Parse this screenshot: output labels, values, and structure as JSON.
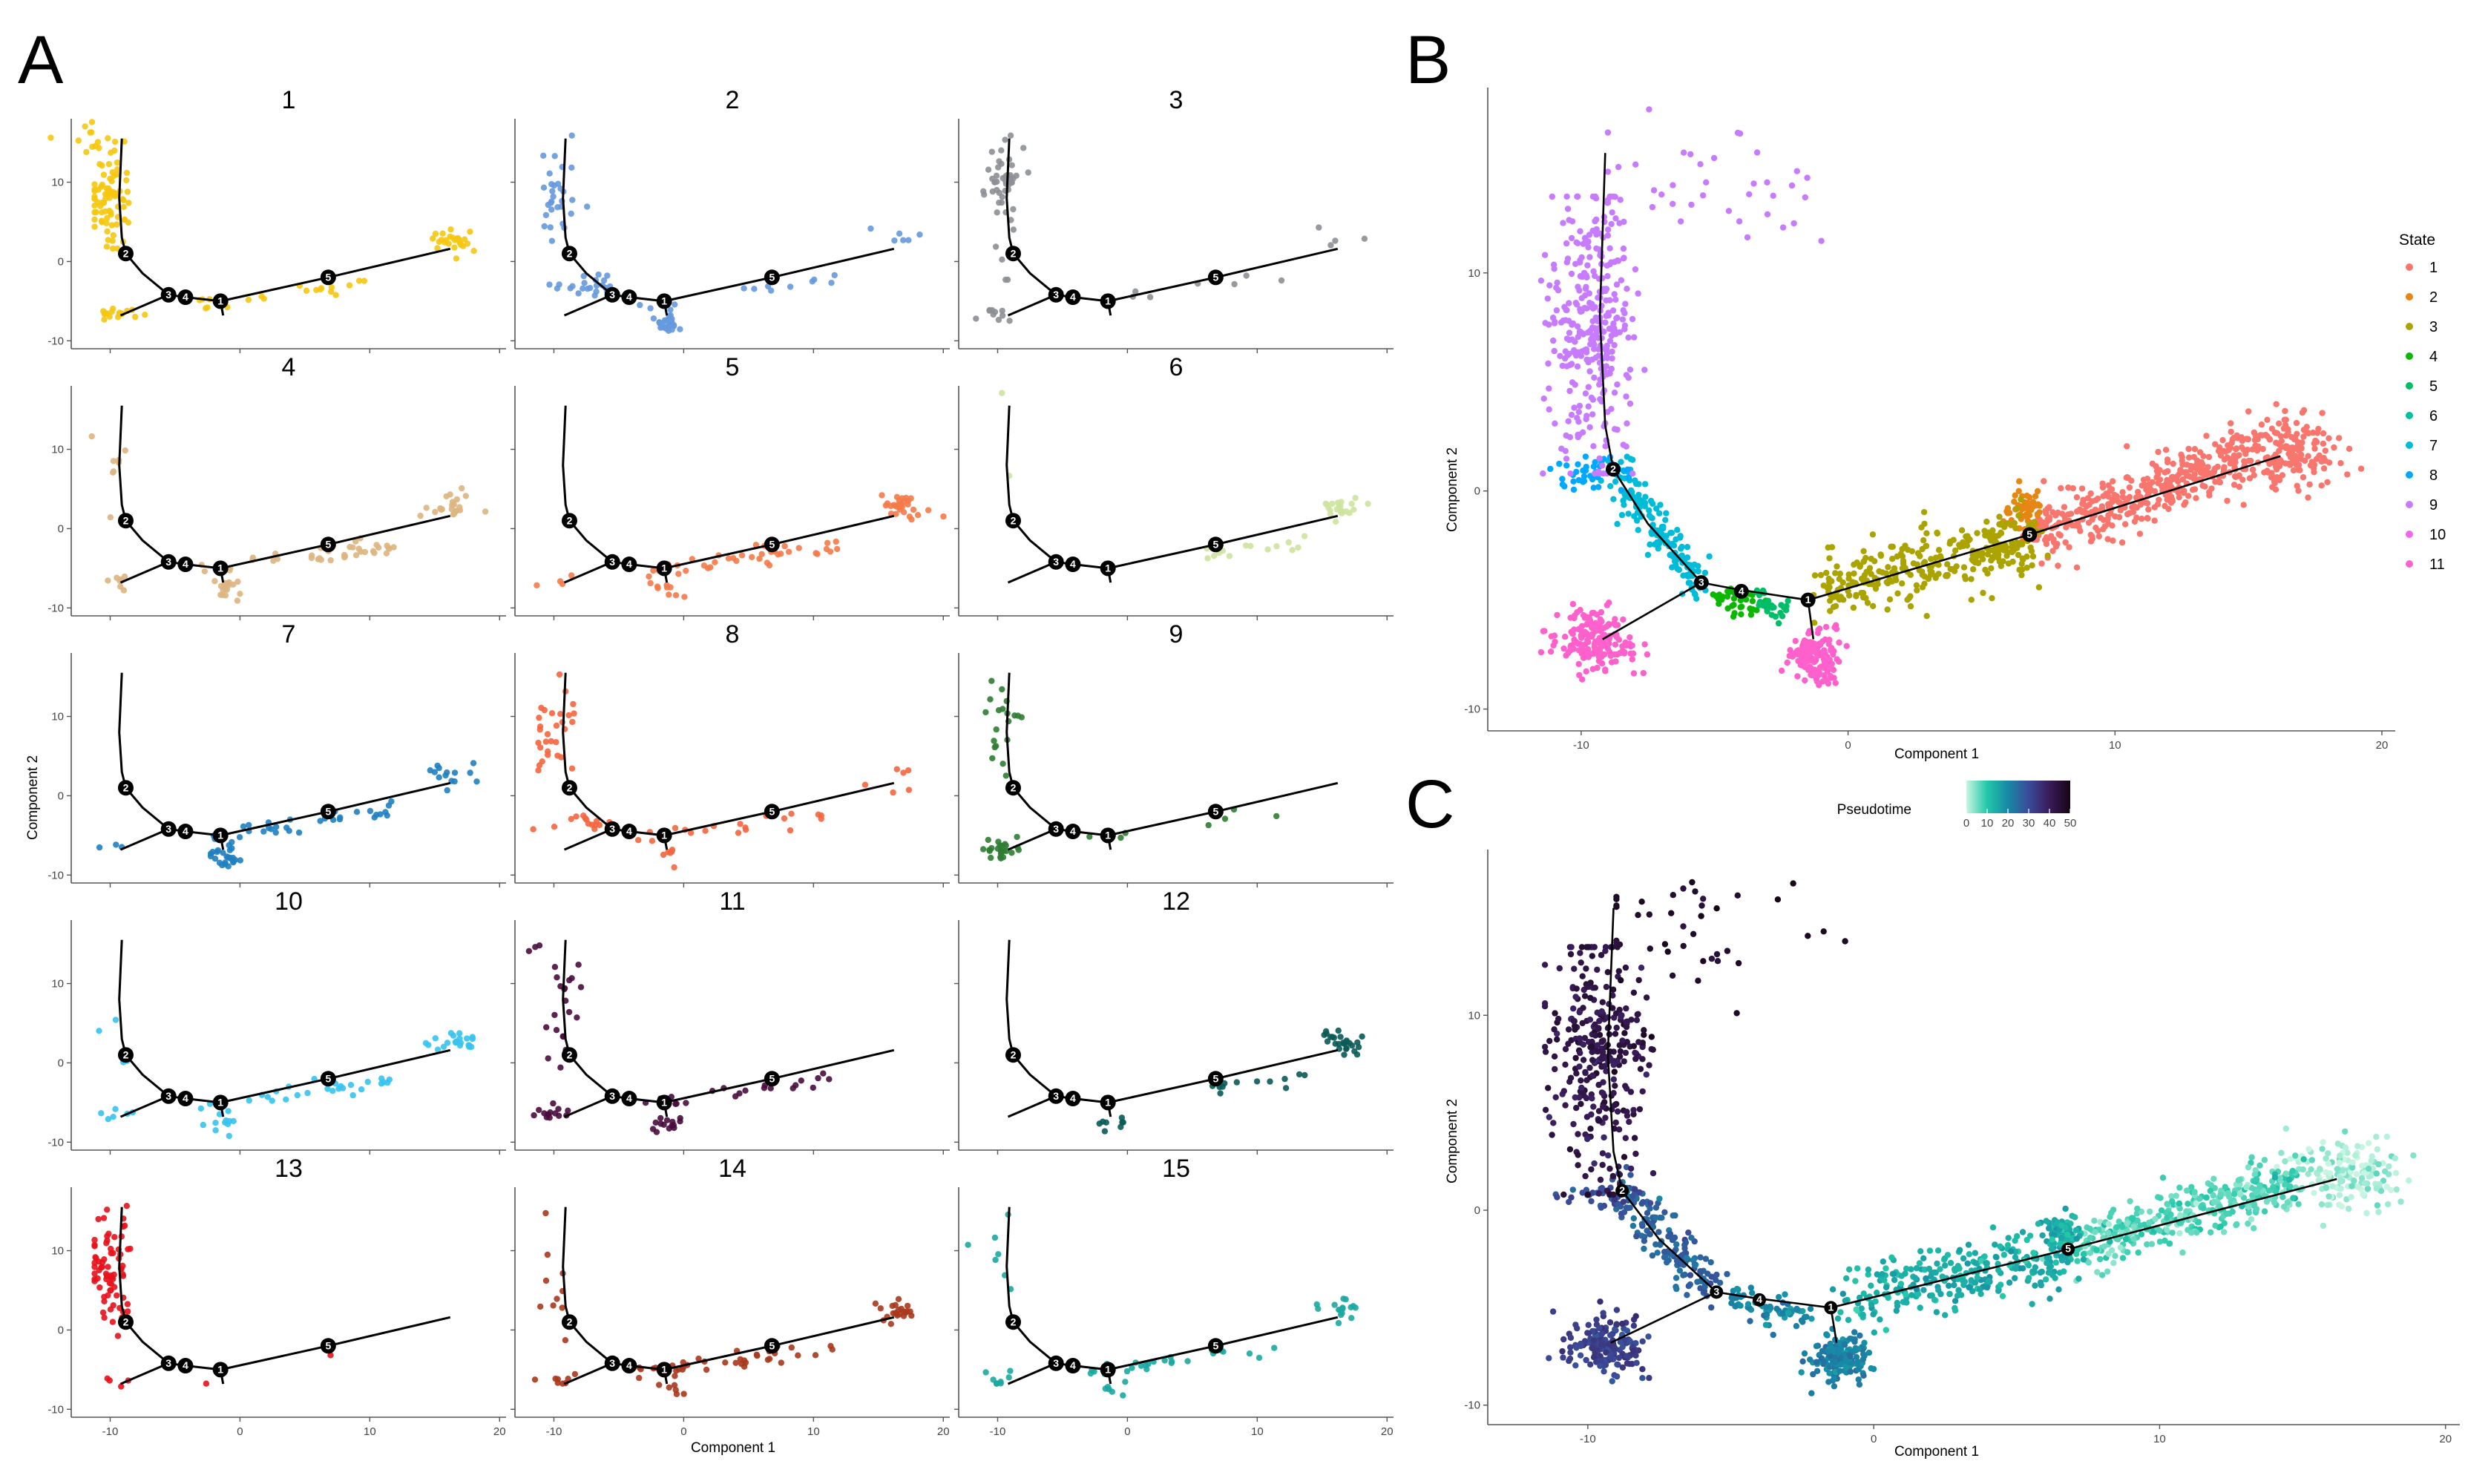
{
  "panel_letters": [
    "A",
    "B",
    "C"
  ],
  "chart_data": [
    {
      "panel": "A",
      "type": "scatter",
      "xlabel": "Component 1",
      "ylabel": "Component 2",
      "xlim": [
        -13,
        20.5
      ],
      "ylim": [
        -11,
        18
      ],
      "xticks": [
        -10,
        0,
        10,
        20
      ],
      "yticks": [
        -10,
        0,
        10
      ],
      "facets": [
        {
          "title": "1",
          "color": "#F5C710",
          "regions": [
            [
              "arcTop",
              80
            ],
            [
              "leftLow",
              18
            ],
            [
              "rightEnd",
              26
            ],
            [
              "alongMid",
              20
            ],
            [
              "tailUp",
              10
            ]
          ]
        },
        {
          "title": "2",
          "color": "#6699DD",
          "regions": [
            [
              "arcTop",
              30
            ],
            [
              "branch3",
              22
            ],
            [
              "node1Blob",
              28
            ],
            [
              "alongMid",
              12
            ],
            [
              "rightEnd",
              6
            ]
          ]
        },
        {
          "title": "3",
          "color": "#8C9096",
          "regions": [
            [
              "arcUpper",
              40
            ],
            [
              "arcMid",
              8
            ],
            [
              "leftLow",
              10
            ],
            [
              "alongMid",
              8
            ],
            [
              "rightEnd",
              4
            ]
          ]
        },
        {
          "title": "4",
          "color": "#DDB57F",
          "regions": [
            [
              "arcSparse",
              8
            ],
            [
              "leftLow",
              8
            ],
            [
              "node1Blob",
              18
            ],
            [
              "alongMid",
              40
            ],
            [
              "rightEnd",
              22
            ]
          ]
        },
        {
          "title": "5",
          "color": "#F47A48",
          "regions": [
            [
              "alongMid",
              40
            ],
            [
              "rightEnd",
              30
            ],
            [
              "node1Blob",
              8
            ],
            [
              "leftLow",
              4
            ]
          ]
        },
        {
          "title": "6",
          "color": "#CDE39F",
          "regions": [
            [
              "alongFar",
              14
            ],
            [
              "rightEnd",
              22
            ],
            [
              "arcSparse",
              2
            ]
          ]
        },
        {
          "title": "7",
          "color": "#1F7FC0",
          "regions": [
            [
              "node1Blob",
              24
            ],
            [
              "alongMid",
              36
            ],
            [
              "rightEnd",
              14
            ],
            [
              "leftLow",
              3
            ]
          ]
        },
        {
          "title": "8",
          "color": "#F4663F",
          "regions": [
            [
              "arcTop",
              30
            ],
            [
              "branch3",
              14
            ],
            [
              "alongMid",
              22
            ],
            [
              "node1Blob",
              6
            ],
            [
              "rightEnd",
              6
            ]
          ]
        },
        {
          "title": "9",
          "color": "#2E7D32",
          "regions": [
            [
              "arcUpper",
              14
            ],
            [
              "leftLowBlob",
              24
            ],
            [
              "alongMid",
              8
            ],
            [
              "arcMid",
              6
            ]
          ]
        },
        {
          "title": "10",
          "color": "#36C3EE",
          "regions": [
            [
              "arcSparse",
              4
            ],
            [
              "leftLow",
              6
            ],
            [
              "node1Blob",
              10
            ],
            [
              "alongMid",
              30
            ],
            [
              "rightEnd",
              22
            ]
          ]
        },
        {
          "title": "11",
          "color": "#4A0C3E",
          "regions": [
            [
              "arcUpper",
              10
            ],
            [
              "arcMid",
              10
            ],
            [
              "leftLow",
              14
            ],
            [
              "node1Blob",
              14
            ],
            [
              "alongMid",
              22
            ],
            [
              "tailUp",
              3
            ]
          ]
        },
        {
          "title": "12",
          "color": "#0A5A57",
          "regions": [
            [
              "alongFar",
              12
            ],
            [
              "rightEnd",
              26
            ],
            [
              "node1Blob",
              8
            ]
          ]
        },
        {
          "title": "13",
          "color": "#E8111B",
          "regions": [
            [
              "arcTop",
              60
            ],
            [
              "arcMid",
              14
            ],
            [
              "leftLow",
              4
            ],
            [
              "alongMid",
              2
            ]
          ]
        },
        {
          "title": "14",
          "color": "#A9391C",
          "regions": [
            [
              "arcSparse",
              10
            ],
            [
              "leftLow",
              8
            ],
            [
              "alongMid",
              38
            ],
            [
              "rightEnd",
              22
            ],
            [
              "node1Blob",
              6
            ]
          ]
        },
        {
          "title": "15",
          "color": "#19A9A0",
          "regions": [
            [
              "arcSparse",
              8
            ],
            [
              "leftLow",
              8
            ],
            [
              "alongMid",
              28
            ],
            [
              "rightEnd",
              16
            ],
            [
              "node1Blob",
              6
            ]
          ]
        }
      ],
      "trajectory_nodes": [
        {
          "label": "1",
          "x": -1.5,
          "y": -5.0
        },
        {
          "label": "2",
          "x": -8.8,
          "y": 1.0
        },
        {
          "label": "3",
          "x": -5.5,
          "y": -4.2
        },
        {
          "label": "4",
          "x": -4.2,
          "y": -4.5
        },
        {
          "label": "5",
          "x": 6.8,
          "y": -2.0
        }
      ]
    },
    {
      "panel": "B",
      "type": "scatter",
      "xlabel": "Component 1",
      "ylabel": "Component 2",
      "xlim": [
        -13.5,
        20.5
      ],
      "ylim": [
        -11,
        18.5
      ],
      "xticks": [
        -10,
        0,
        10,
        20
      ],
      "yticks": [
        -10,
        0,
        10
      ],
      "legend": {
        "title": "State",
        "position": "right",
        "entries": [
          {
            "label": "1",
            "color": "#F8766D"
          },
          {
            "label": "2",
            "color": "#E68613"
          },
          {
            "label": "3",
            "color": "#ABA300"
          },
          {
            "label": "4",
            "color": "#0CB702"
          },
          {
            "label": "5",
            "color": "#00BE67"
          },
          {
            "label": "6",
            "color": "#00C19A"
          },
          {
            "label": "7",
            "color": "#00BCD8"
          },
          {
            "label": "8",
            "color": "#00A9FF"
          },
          {
            "label": "9",
            "color": "#C77CFF"
          },
          {
            "label": "10",
            "color": "#ED68ED"
          },
          {
            "label": "11",
            "color": "#FF61CC"
          }
        ]
      },
      "state_regions": [
        {
          "state": "1",
          "region": "rightArm",
          "n": 380
        },
        {
          "state": "1",
          "region": "rightEndBlob",
          "n": 160
        },
        {
          "state": "2",
          "region": "node5Blob",
          "n": 60
        },
        {
          "state": "3",
          "region": "midBand",
          "n": 300
        },
        {
          "state": "4",
          "region": "node4Seg",
          "n": 40
        },
        {
          "state": "5",
          "region": "node4b",
          "n": 30
        },
        {
          "state": "7",
          "region": "lowerArm",
          "n": 160
        },
        {
          "state": "8",
          "region": "node2Band",
          "n": 40
        },
        {
          "state": "9",
          "region": "topArm",
          "n": 330
        },
        {
          "state": "9",
          "region": "topScatter",
          "n": 40
        },
        {
          "state": "11",
          "region": "leftLowBlob",
          "n": 170
        },
        {
          "state": "11",
          "region": "node1Blob",
          "n": 150
        }
      ],
      "trajectory_nodes": [
        {
          "label": "1",
          "x": -1.5,
          "y": -5.0
        },
        {
          "label": "2",
          "x": -8.8,
          "y": 1.0
        },
        {
          "label": "3",
          "x": -5.5,
          "y": -4.2
        },
        {
          "label": "4",
          "x": -4.0,
          "y": -4.6
        },
        {
          "label": "5",
          "x": 6.8,
          "y": -2.0
        }
      ]
    },
    {
      "panel": "C",
      "type": "scatter",
      "xlabel": "Component 1",
      "ylabel": "Component 2",
      "xlim": [
        -13.5,
        20.5
      ],
      "ylim": [
        -11,
        18.5
      ],
      "xticks": [
        -10,
        0,
        10,
        20
      ],
      "yticks": [
        -10,
        0,
        10
      ],
      "colorbar": {
        "title": "Pseudotime",
        "position": "top",
        "min": 0,
        "max": 50,
        "ticks": [
          "0",
          "10",
          "20",
          "30",
          "40",
          "50"
        ],
        "colors": [
          "#C8F5E1",
          "#21C7A8",
          "#1789A6",
          "#3B4B99",
          "#3A1B5A",
          "#140512"
        ]
      },
      "pseudotime_regions": [
        {
          "region": "rightEndBlob",
          "n": 160,
          "t": 2
        },
        {
          "region": "rightArm",
          "n": 380,
          "t": 7
        },
        {
          "region": "node5Blob",
          "n": 60,
          "t": 14
        },
        {
          "region": "midBand",
          "n": 300,
          "t": 14
        },
        {
          "region": "node4Seg",
          "n": 40,
          "t": 20
        },
        {
          "region": "node4b",
          "n": 30,
          "t": 20
        },
        {
          "region": "node1Blob",
          "n": 150,
          "t": 21
        },
        {
          "region": "lowerArm",
          "n": 160,
          "t": 26
        },
        {
          "region": "node2Band",
          "n": 40,
          "t": 29
        },
        {
          "region": "leftLowBlob",
          "n": 170,
          "t": 32
        },
        {
          "region": "topArm",
          "n": 330,
          "t": 42
        },
        {
          "region": "topScatter",
          "n": 40,
          "t": 47
        }
      ],
      "trajectory_nodes": [
        {
          "label": "1",
          "x": -1.5,
          "y": -5.0
        },
        {
          "label": "2",
          "x": -8.8,
          "y": 1.0
        },
        {
          "label": "3",
          "x": -5.5,
          "y": -4.2
        },
        {
          "label": "4",
          "x": -4.0,
          "y": -4.6
        },
        {
          "label": "5",
          "x": 6.8,
          "y": -2.0
        }
      ]
    }
  ]
}
